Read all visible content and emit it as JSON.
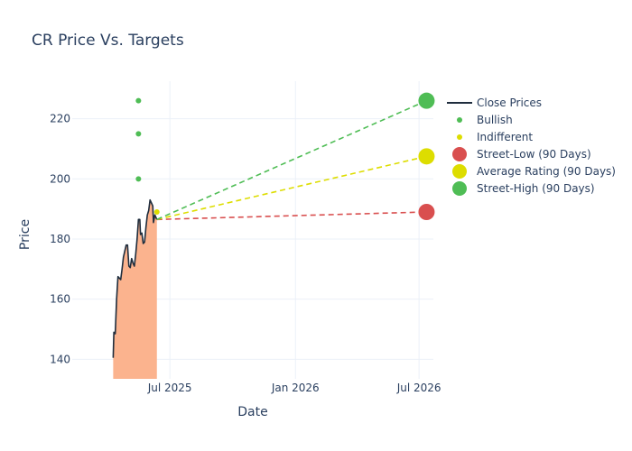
{
  "chart_data": {
    "type": "line",
    "title": "CR Price Vs. Targets",
    "xlabel": "Date",
    "ylabel": "Price",
    "x_range": [
      "2025-02-08",
      "2026-07-22"
    ],
    "ylim": [
      133.5,
      232.5
    ],
    "x_ticks": [
      {
        "date": "2025-07-01",
        "label": "Jul 2025"
      },
      {
        "date": "2026-01-01",
        "label": "Jan 2026"
      },
      {
        "date": "2026-07-01",
        "label": "Jul 2026"
      }
    ],
    "y_ticks": [
      140,
      160,
      180,
      200,
      220
    ],
    "close_prices": {
      "name": "Close Prices",
      "color": "#1f2d3d",
      "fill_color": "#fbb38e",
      "points": [
        [
          "2025-04-09",
          140.5
        ],
        [
          "2025-04-10",
          149
        ],
        [
          "2025-04-12",
          148.5
        ],
        [
          "2025-04-14",
          160
        ],
        [
          "2025-04-16",
          167.5
        ],
        [
          "2025-04-18",
          167
        ],
        [
          "2025-04-20",
          166.5
        ],
        [
          "2025-04-22",
          170
        ],
        [
          "2025-04-24",
          174
        ],
        [
          "2025-04-26",
          176
        ],
        [
          "2025-04-28",
          178
        ],
        [
          "2025-04-30",
          178
        ],
        [
          "2025-05-02",
          171
        ],
        [
          "2025-05-04",
          170.5
        ],
        [
          "2025-05-06",
          173.5
        ],
        [
          "2025-05-08",
          172
        ],
        [
          "2025-05-10",
          171
        ],
        [
          "2025-05-12",
          175
        ],
        [
          "2025-05-14",
          180
        ],
        [
          "2025-05-16",
          186.5
        ],
        [
          "2025-05-18",
          186.5
        ],
        [
          "2025-05-19",
          181.5
        ],
        [
          "2025-05-21",
          182
        ],
        [
          "2025-05-23",
          178.5
        ],
        [
          "2025-05-25",
          179
        ],
        [
          "2025-05-27",
          184
        ],
        [
          "2025-05-29",
          188
        ],
        [
          "2025-05-31",
          189.5
        ],
        [
          "2025-06-02",
          193
        ],
        [
          "2025-06-04",
          192
        ],
        [
          "2025-06-06",
          191
        ],
        [
          "2025-06-07",
          185.5
        ],
        [
          "2025-06-09",
          188
        ],
        [
          "2025-06-11",
          187
        ],
        [
          "2025-06-12",
          186.5
        ]
      ]
    },
    "bullish": {
      "name": "Bullish",
      "color": "#4fbd55",
      "points": [
        [
          "2025-05-16",
          226
        ],
        [
          "2025-05-16",
          215
        ],
        [
          "2025-05-16",
          200
        ]
      ]
    },
    "indifferent": {
      "name": "Indifferent",
      "color": "#dddd00",
      "points": [
        [
          "2025-06-12",
          189
        ]
      ]
    },
    "targets": {
      "start": [
        "2025-06-12",
        186.5
      ],
      "date": "2026-07-12",
      "street_low": {
        "name": "Street-Low (90 Days)",
        "value": 189,
        "color": "#d94f4f"
      },
      "average": {
        "name": "Average Rating (90 Days)",
        "value": 207.5,
        "color": "#dddd00"
      },
      "street_high": {
        "name": "Street-High (90 Days)",
        "value": 226,
        "color": "#4fbd55"
      }
    },
    "legend_position": "right"
  }
}
